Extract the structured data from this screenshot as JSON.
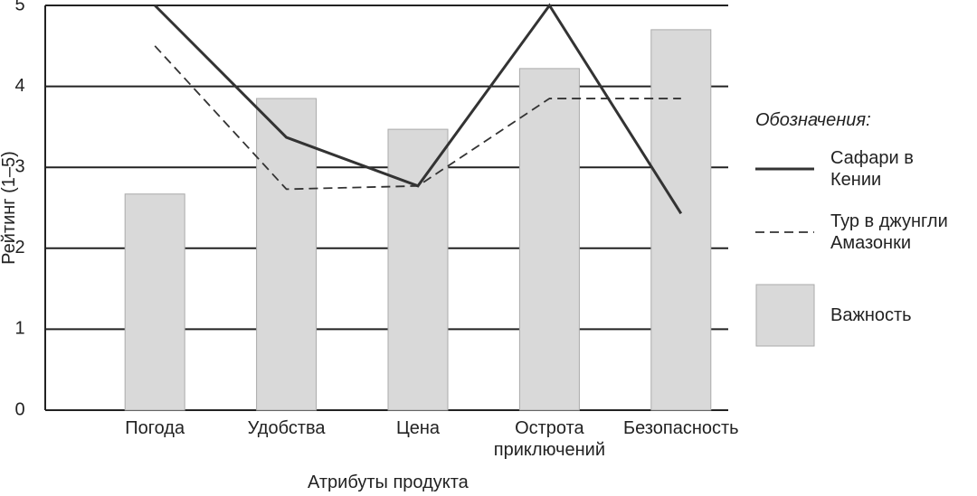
{
  "chart_data": {
    "type": "bar",
    "x_label": "Атрибуты продукта",
    "y_label": "Рейтинг (1–5)",
    "legend_title": "Обозначения:",
    "categories": [
      "Погода",
      "Удобства",
      "Цена",
      "Острота приключений",
      "Безопасность"
    ],
    "series": [
      {
        "name": "Сафари в Кении",
        "type": "line",
        "color": "#333333",
        "dash": false,
        "values": [
          5.0,
          3.37,
          2.77,
          5.0,
          2.43
        ]
      },
      {
        "name": "Тур в джунгли Амазонки",
        "type": "line",
        "color": "#333333",
        "dash": true,
        "values": [
          4.5,
          2.73,
          2.77,
          3.85,
          3.85
        ]
      },
      {
        "name": "Важность",
        "type": "bar",
        "color": "#d9d9d9",
        "values": [
          2.67,
          3.85,
          3.47,
          4.22,
          4.7
        ]
      }
    ],
    "ylim": [
      0,
      5
    ],
    "yticks": [
      0,
      1,
      2,
      3,
      4,
      5
    ],
    "grid": true,
    "legend": "right"
  }
}
